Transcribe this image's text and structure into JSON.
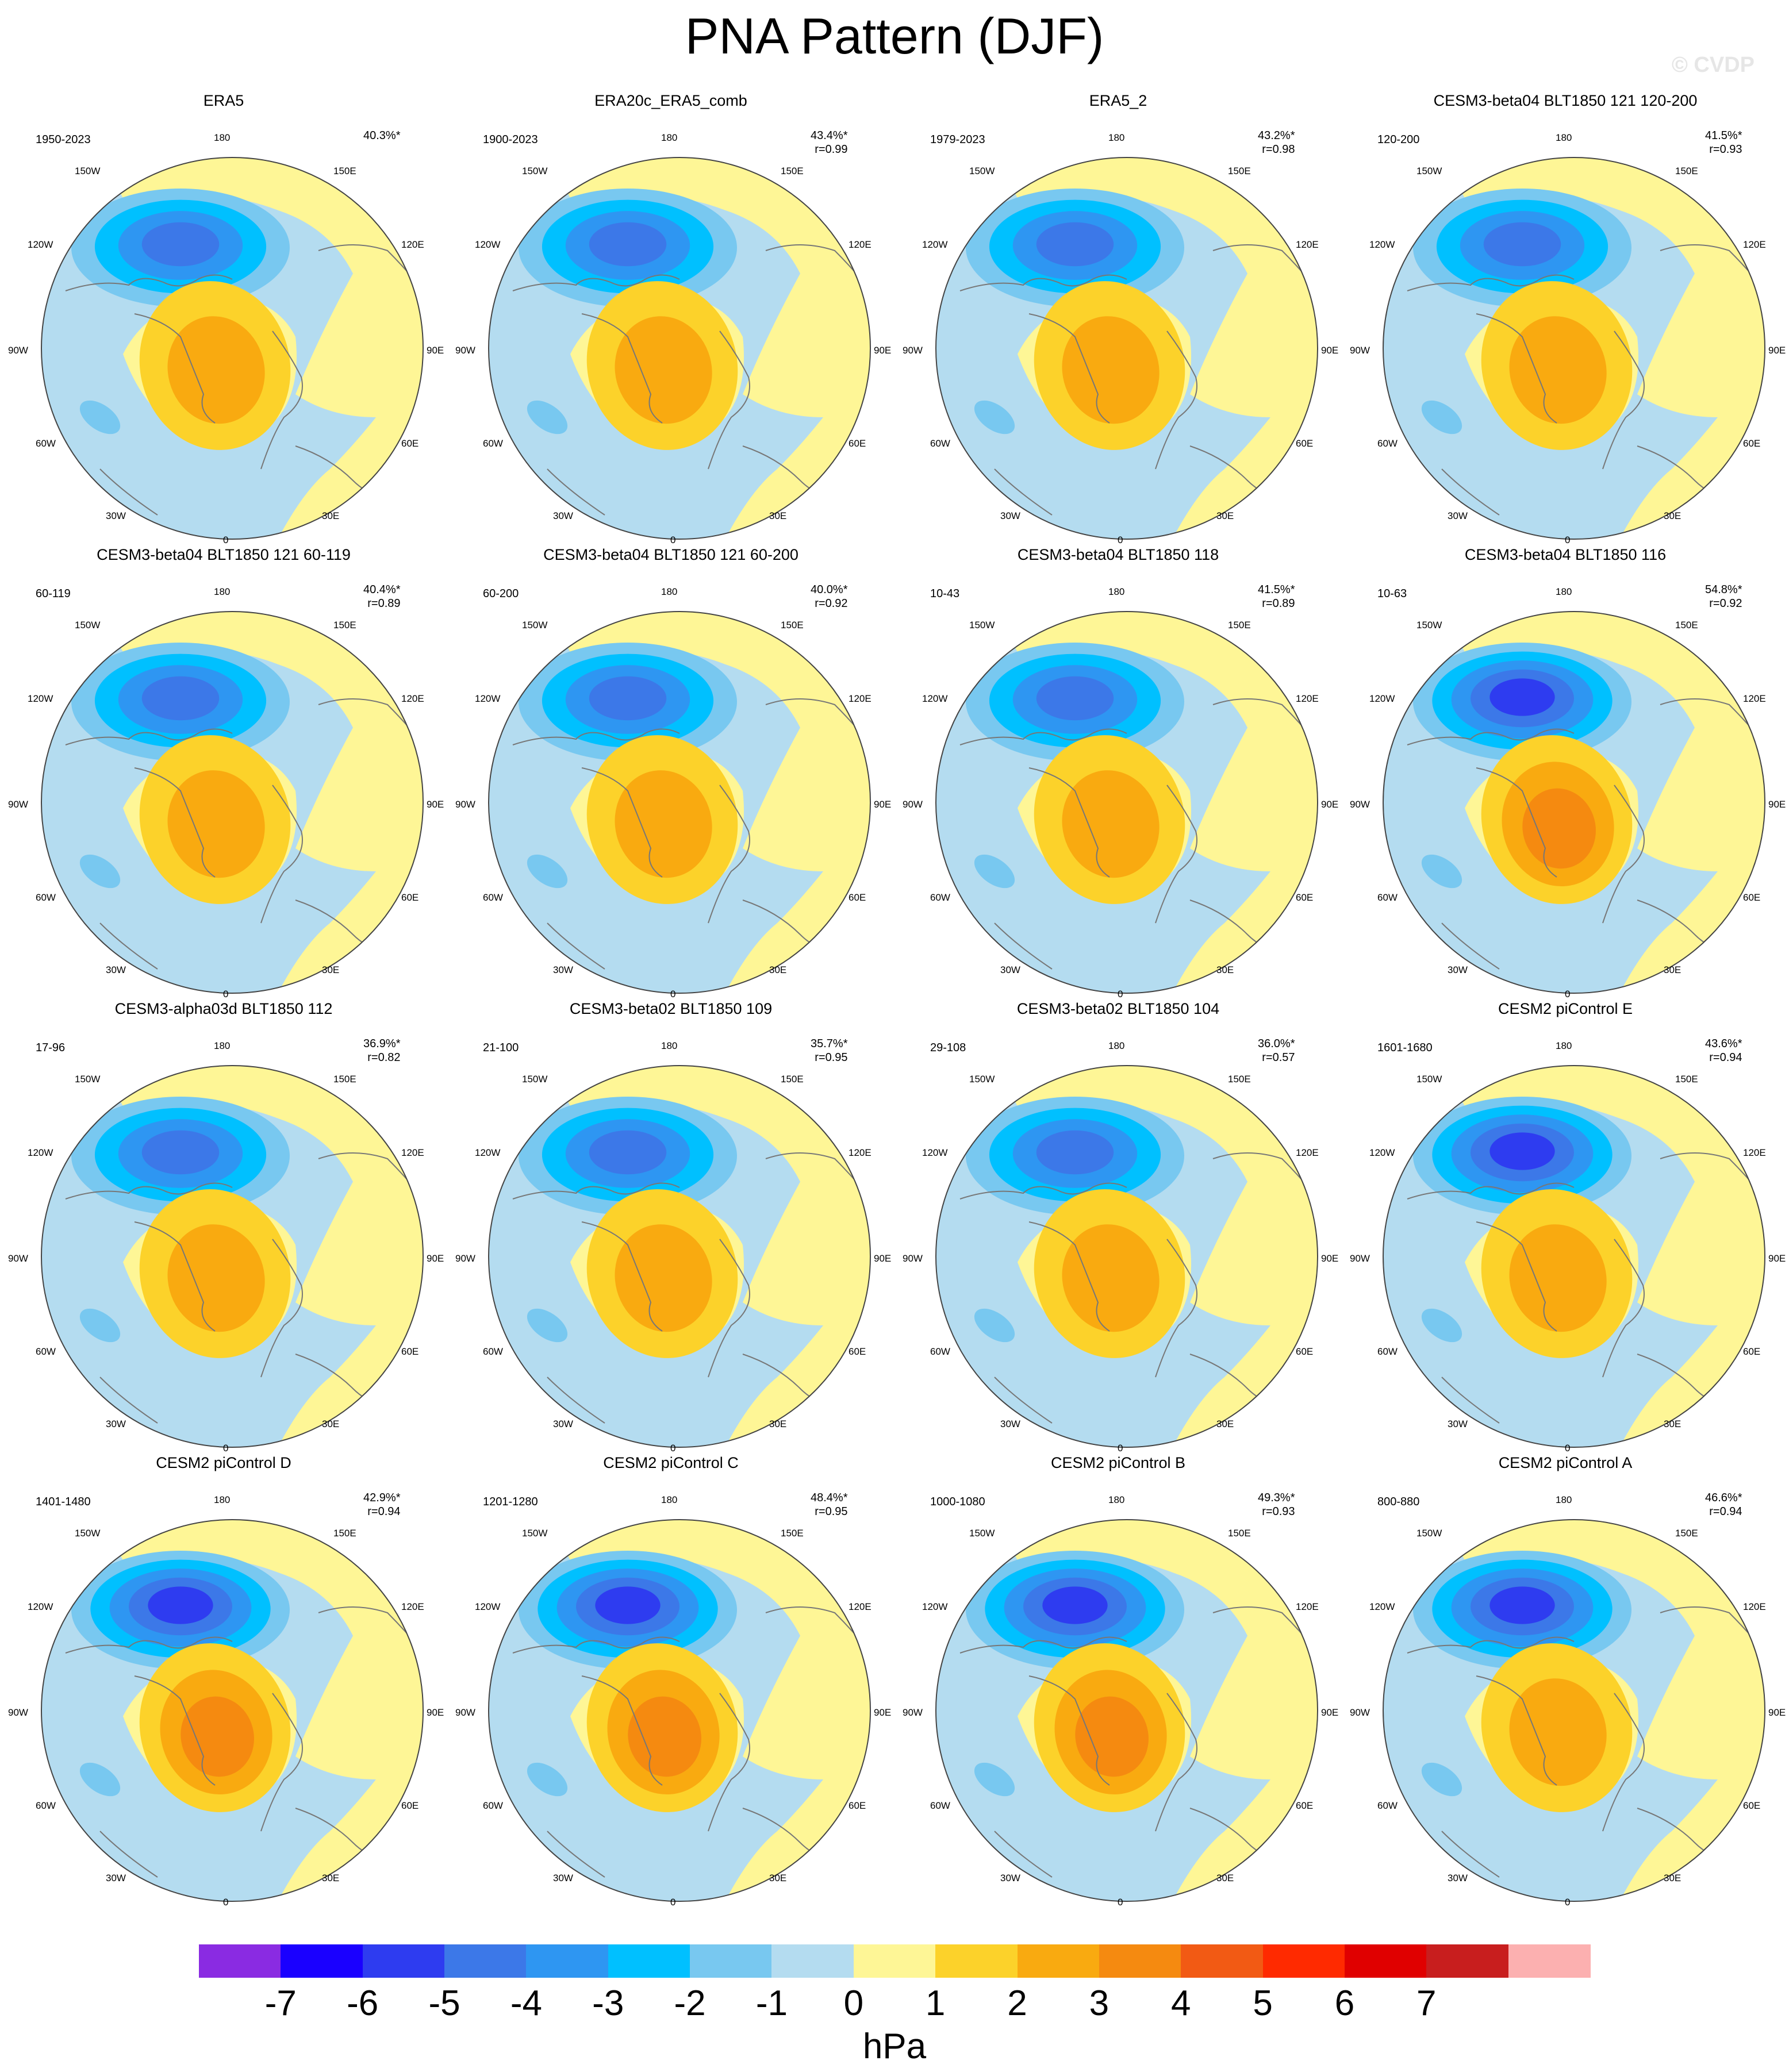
{
  "title": "PNA Pattern (DJF)",
  "watermark": "© CVDP",
  "units": "hPa",
  "colors": {
    "ocean_neutral": "#b4dcf0",
    "land_neutral": "#fef696",
    "coast": "#777777"
  },
  "coord_labels": {
    "top": "180",
    "bottom": "0",
    "left": "90W",
    "right": "90E",
    "upper_left": "150W",
    "upper_right": "150E",
    "mid_left_upper": "120W",
    "mid_right_upper": "120E",
    "mid_left_lower": "60W",
    "mid_right_lower": "60E",
    "lower_left": "30W",
    "lower_right": "30E"
  },
  "colorbar": {
    "colors": [
      "#8a2be2",
      "#1a00ff",
      "#2e3cf0",
      "#3c78e8",
      "#2e96f2",
      "#00c0ff",
      "#78c8f0",
      "#b4dcf0",
      "#fef696",
      "#fcd22a",
      "#f9aa10",
      "#f58a10",
      "#f25a14",
      "#ff2a00",
      "#e00000",
      "#c81e1e",
      "#fcb0b0"
    ],
    "ticks": [
      "-7",
      "-6",
      "-5",
      "-4",
      "-3",
      "-2",
      "-1",
      "0",
      "1",
      "2",
      "3",
      "4",
      "5",
      "6",
      "7"
    ]
  },
  "panels": [
    {
      "title": "ERA5",
      "years": "1950-2023",
      "stats1": "40.3%*",
      "stats2": "",
      "strength": 0.95
    },
    {
      "title": "ERA20c_ERA5_comb",
      "years": "1900-2023",
      "stats1": "43.4%*",
      "stats2": "r=0.99",
      "strength": 1.0
    },
    {
      "title": "ERA5_2",
      "years": "1979-2023",
      "stats1": "43.2%*",
      "stats2": "r=0.98",
      "strength": 1.0
    },
    {
      "title": "CESM3-beta04 BLT1850 121 120-200",
      "years": "120-200",
      "stats1": "41.5%*",
      "stats2": "r=0.93",
      "strength": 0.9
    },
    {
      "title": "CESM3-beta04 BLT1850 121 60-119",
      "years": "60-119",
      "stats1": "40.4%*",
      "stats2": "r=0.89",
      "strength": 1.05
    },
    {
      "title": "CESM3-beta04 BLT1850 121 60-200",
      "years": "60-200",
      "stats1": "40.0%*",
      "stats2": "r=0.92",
      "strength": 1.0
    },
    {
      "title": "CESM3-beta04 BLT1850 118",
      "years": "10-43",
      "stats1": "41.5%*",
      "stats2": "r=0.89",
      "strength": 1.0
    },
    {
      "title": "CESM3-beta04 BLT1850 116",
      "years": "10-63",
      "stats1": "54.8%*",
      "stats2": "r=0.92",
      "strength": 1.3
    },
    {
      "title": "CESM3-alpha03d BLT1850 112",
      "years": "17-96",
      "stats1": "36.9%*",
      "stats2": "r=0.82",
      "strength": 0.9
    },
    {
      "title": "CESM3-beta02 BLT1850 109",
      "years": "21-100",
      "stats1": "35.7%*",
      "stats2": "r=0.95",
      "strength": 0.95
    },
    {
      "title": "CESM3-beta02 BLT1850 104",
      "years": "29-108",
      "stats1": "36.0%*",
      "stats2": "r=0.57",
      "strength": 0.85
    },
    {
      "title": "CESM2 piControl E",
      "years": "1601-1680",
      "stats1": "43.6%*",
      "stats2": "r=0.94",
      "strength": 1.1
    },
    {
      "title": "CESM2 piControl D",
      "years": "1401-1480",
      "stats1": "42.9%*",
      "stats2": "r=0.94",
      "strength": 1.15
    },
    {
      "title": "CESM2 piControl C",
      "years": "1201-1280",
      "stats1": "48.4%*",
      "stats2": "r=0.95",
      "strength": 1.3
    },
    {
      "title": "CESM2 piControl B",
      "years": "1000-1080",
      "stats1": "49.3%*",
      "stats2": "r=0.93",
      "strength": 1.2
    },
    {
      "title": "CESM2 piControl A",
      "years": "800-880",
      "stats1": "46.6%*",
      "stats2": "r=0.94",
      "strength": 1.1
    }
  ]
}
